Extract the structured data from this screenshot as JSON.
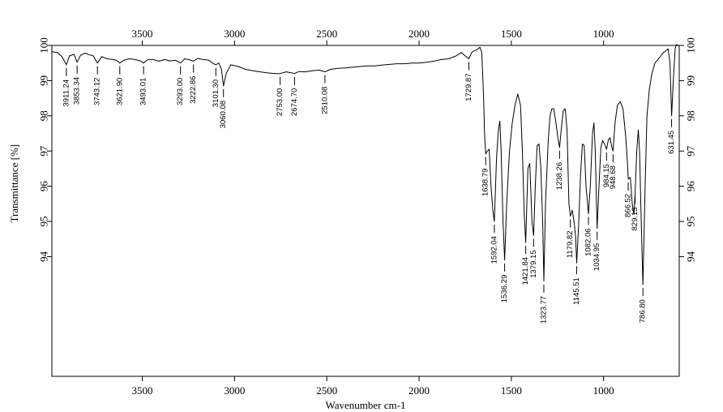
{
  "chart_data": {
    "type": "line",
    "title": "",
    "xlabel": "Wavenumber cm-1",
    "ylabel": "Transmittance [%]",
    "xlim": [
      3990,
      590
    ],
    "ylim": [
      90.6,
      100
    ],
    "x_reversed": true,
    "grid": false,
    "legend": "none",
    "line_color": "#000000",
    "x_ticks": [
      3500,
      3000,
      2500,
      2000,
      1500,
      1000
    ],
    "x_tick_labels": [
      "3500",
      "3000",
      "2500",
      "2000",
      "1500",
      "1000"
    ],
    "y_ticks": [
      94,
      95,
      96,
      97,
      98,
      99,
      100
    ],
    "y_tick_labels": [
      "94",
      "95",
      "96",
      "97",
      "98",
      "99",
      "100"
    ],
    "series": [
      {
        "x": [
          3990,
          3960,
          3935,
          3911.24,
          3895,
          3870,
          3853.34,
          3835,
          3810,
          3790,
          3765,
          3743.12,
          3720,
          3690,
          3660,
          3640,
          3621.9,
          3600,
          3570,
          3540,
          3510,
          3493.01,
          3470,
          3440,
          3410,
          3380,
          3350,
          3320,
          3293.0,
          3270,
          3250,
          3222.86,
          3200,
          3170,
          3140,
          3120,
          3101.3,
          3085,
          3070,
          3060.08,
          3045,
          3020,
          2980,
          2940,
          2900,
          2860,
          2820,
          2780,
          2753.0,
          2720,
          2690,
          2674.7,
          2650,
          2620,
          2580,
          2540,
          2510.08,
          2480,
          2440,
          2400,
          2360,
          2320,
          2280,
          2240,
          2200,
          2160,
          2120,
          2080,
          2040,
          2000,
          1960,
          1920,
          1880,
          1840,
          1800,
          1770,
          1750,
          1729.87,
          1715,
          1700,
          1685,
          1670,
          1660,
          1650,
          1645,
          1638.79,
          1630,
          1620,
          1610,
          1600,
          1592.04,
          1580,
          1570,
          1562,
          1555,
          1545,
          1536.29,
          1525,
          1510,
          1495,
          1480,
          1465,
          1450,
          1440,
          1430,
          1421.84,
          1410,
          1400,
          1395,
          1388,
          1379.15,
          1370,
          1360,
          1350,
          1340,
          1330,
          1323.77,
          1315,
          1300,
          1290,
          1280,
          1270,
          1258,
          1248,
          1238.26,
          1228,
          1218,
          1208,
          1198,
          1188,
          1179.82,
          1170,
          1160,
          1152,
          1145.51,
          1135,
          1125,
          1115,
          1105,
          1095,
          1082.06,
          1072,
          1060,
          1052,
          1045,
          1034.95,
          1025,
          1015,
          1005,
          995,
          984.15,
          975,
          965,
          955,
          948.68,
          938,
          925,
          910,
          895,
          880,
          870,
          866.52,
          855,
          845,
          835,
          829.13,
          820,
          812,
          805,
          796,
          786.8,
          776,
          765,
          752,
          738,
          722,
          705,
          690,
          675,
          662,
          650,
          640,
          631.45,
          622,
          612,
          605,
          595
        ],
        "y": [
          99.82,
          99.8,
          99.68,
          99.45,
          99.7,
          99.75,
          99.52,
          99.72,
          99.78,
          99.74,
          99.7,
          99.5,
          99.68,
          99.62,
          99.6,
          99.58,
          99.5,
          99.58,
          99.62,
          99.6,
          99.56,
          99.5,
          99.6,
          99.6,
          99.55,
          99.6,
          99.56,
          99.58,
          99.5,
          99.62,
          99.6,
          99.55,
          99.63,
          99.6,
          99.58,
          99.5,
          99.45,
          99.5,
          99.3,
          98.85,
          99.2,
          99.45,
          99.4,
          99.32,
          99.28,
          99.25,
          99.22,
          99.2,
          99.2,
          99.25,
          99.22,
          99.2,
          99.26,
          99.25,
          99.28,
          99.3,
          99.25,
          99.32,
          99.35,
          99.36,
          99.38,
          99.4,
          99.42,
          99.42,
          99.44,
          99.46,
          99.48,
          99.48,
          99.5,
          99.5,
          99.52,
          99.55,
          99.6,
          99.62,
          99.7,
          99.8,
          99.7,
          99.62,
          99.8,
          99.85,
          99.88,
          99.95,
          99.8,
          98.5,
          97.5,
          96.92,
          97.0,
          97.05,
          96.0,
          95.3,
          95.0,
          96.8,
          97.6,
          97.85,
          97.0,
          95.0,
          93.9,
          95.5,
          97.0,
          97.8,
          98.3,
          98.62,
          98.3,
          97.0,
          95.2,
          94.4,
          96.5,
          96.65,
          96.0,
          95.0,
          94.6,
          96.0,
          97.15,
          97.2,
          96.5,
          95.0,
          93.3,
          95.5,
          97.3,
          98.0,
          98.2,
          98.2,
          97.8,
          97.4,
          97.1,
          97.7,
          98.15,
          98.2,
          97.6,
          95.5,
          95.15,
          95.32,
          95.0,
          94.6,
          93.82,
          94.9,
          96.3,
          97.2,
          97.15,
          96.0,
          95.22,
          96.0,
          97.5,
          97.8,
          97.0,
          94.8,
          96.0,
          97.1,
          97.3,
          97.2,
          97.05,
          97.3,
          97.38,
          97.1,
          97.0,
          97.8,
          98.3,
          98.4,
          98.2,
          97.4,
          96.6,
          96.2,
          96.25,
          95.5,
          95.2,
          95.82,
          97.0,
          97.6,
          97.0,
          95.0,
          93.2,
          95.8,
          98.0,
          98.75,
          99.2,
          99.5,
          99.6,
          99.7,
          99.8,
          99.85,
          99.9,
          99.5,
          98.0,
          99.0,
          99.92,
          100.02,
          100.0
        ]
      }
    ],
    "peak_labels": [
      {
        "x": 3911.24,
        "text": "3911.24"
      },
      {
        "x": 3853.34,
        "text": "3853.34"
      },
      {
        "x": 3743.12,
        "text": "3743.12"
      },
      {
        "x": 3621.9,
        "text": "3621.90"
      },
      {
        "x": 3493.01,
        "text": "3493.01"
      },
      {
        "x": 3293.0,
        "text": "3293.00"
      },
      {
        "x": 3222.86,
        "text": "3222.86"
      },
      {
        "x": 3101.3,
        "text": "3101.30"
      },
      {
        "x": 3060.08,
        "text": "3060.08"
      },
      {
        "x": 2753.0,
        "text": "2753.00"
      },
      {
        "x": 2674.7,
        "text": "2674.70"
      },
      {
        "x": 2510.08,
        "text": "2510.08"
      },
      {
        "x": 1729.87,
        "text": "1729.87"
      },
      {
        "x": 1638.79,
        "text": "1638.79"
      },
      {
        "x": 1592.04,
        "text": "1592.04"
      },
      {
        "x": 1536.29,
        "text": "1536.29"
      },
      {
        "x": 1421.84,
        "text": "1421.84"
      },
      {
        "x": 1379.15,
        "text": "1379.15"
      },
      {
        "x": 1323.77,
        "text": "1323.77"
      },
      {
        "x": 1238.26,
        "text": "1238.26"
      },
      {
        "x": 1179.82,
        "text": "1179.82"
      },
      {
        "x": 1145.51,
        "text": "1145.51"
      },
      {
        "x": 1082.06,
        "text": "1082.06"
      },
      {
        "x": 1034.95,
        "text": "1034.95"
      },
      {
        "x": 984.15,
        "text": "984.15"
      },
      {
        "x": 948.68,
        "text": "948.68"
      },
      {
        "x": 866.52,
        "text": "866.52"
      },
      {
        "x": 829.13,
        "text": "829.13"
      },
      {
        "x": 786.8,
        "text": "786.80"
      },
      {
        "x": 631.45,
        "text": "631.45"
      }
    ]
  }
}
